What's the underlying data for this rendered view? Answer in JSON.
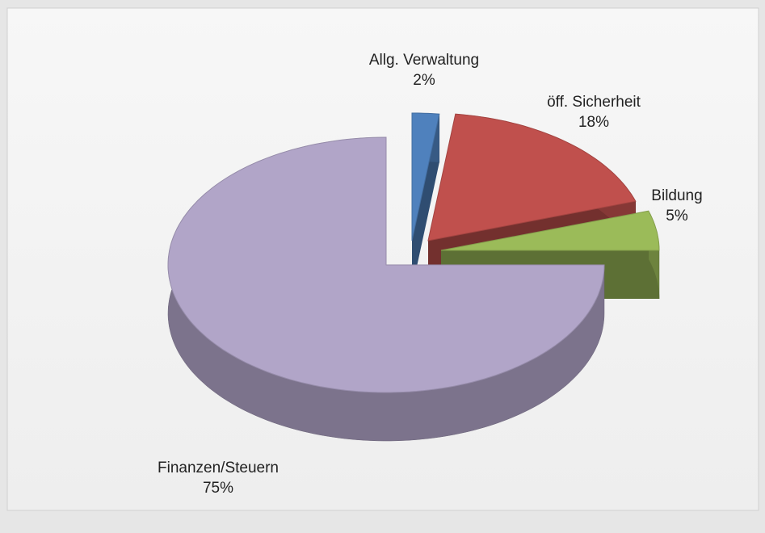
{
  "chart_data": {
    "type": "pie",
    "categories": [
      "Allg. Verwaltung",
      "öff. Sicherheit",
      "Bildung",
      "Finanzen/Steuern"
    ],
    "values": [
      2,
      18,
      5,
      75
    ],
    "value_labels": [
      "2%",
      "18%",
      "5%",
      "75%"
    ],
    "colors": [
      "#4f81bd",
      "#c0504d",
      "#9bbb59",
      "#b1a5c8"
    ]
  }
}
